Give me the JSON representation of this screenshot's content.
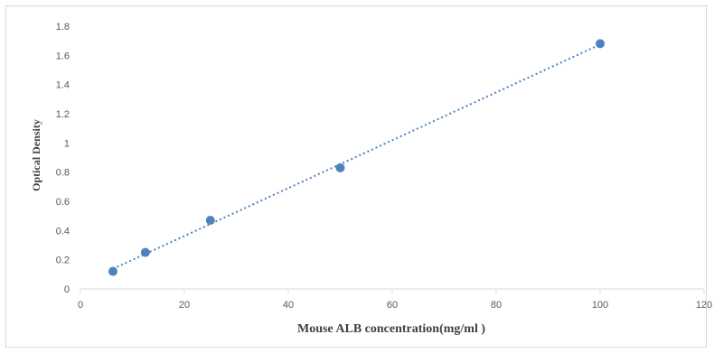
{
  "chart_data": {
    "type": "scatter",
    "title": "",
    "xlabel": "Mouse ALB concentration(mg/ml )",
    "ylabel": "Optical Density",
    "xlim": [
      0,
      120
    ],
    "ylim": [
      0,
      1.8
    ],
    "x_ticks": [
      "0",
      "20",
      "40",
      "60",
      "80",
      "100",
      "120"
    ],
    "y_ticks": [
      "0",
      "0.2",
      "0.4",
      "0.6",
      "0.8",
      "1",
      "1.2",
      "1.4",
      "1.6",
      "1.8"
    ],
    "grid": false,
    "trendline": "linear, dotted",
    "colors": {
      "points": "#4f81bd",
      "trendline": "#4f81bd",
      "axis": "#d9d9d9"
    },
    "series": [
      {
        "points": [
          {
            "x": 6.25,
            "y": 0.12
          },
          {
            "x": 12.5,
            "y": 0.25
          },
          {
            "x": 25,
            "y": 0.47
          },
          {
            "x": 50,
            "y": 0.83
          },
          {
            "x": 100,
            "y": 1.68
          }
        ]
      }
    ]
  }
}
